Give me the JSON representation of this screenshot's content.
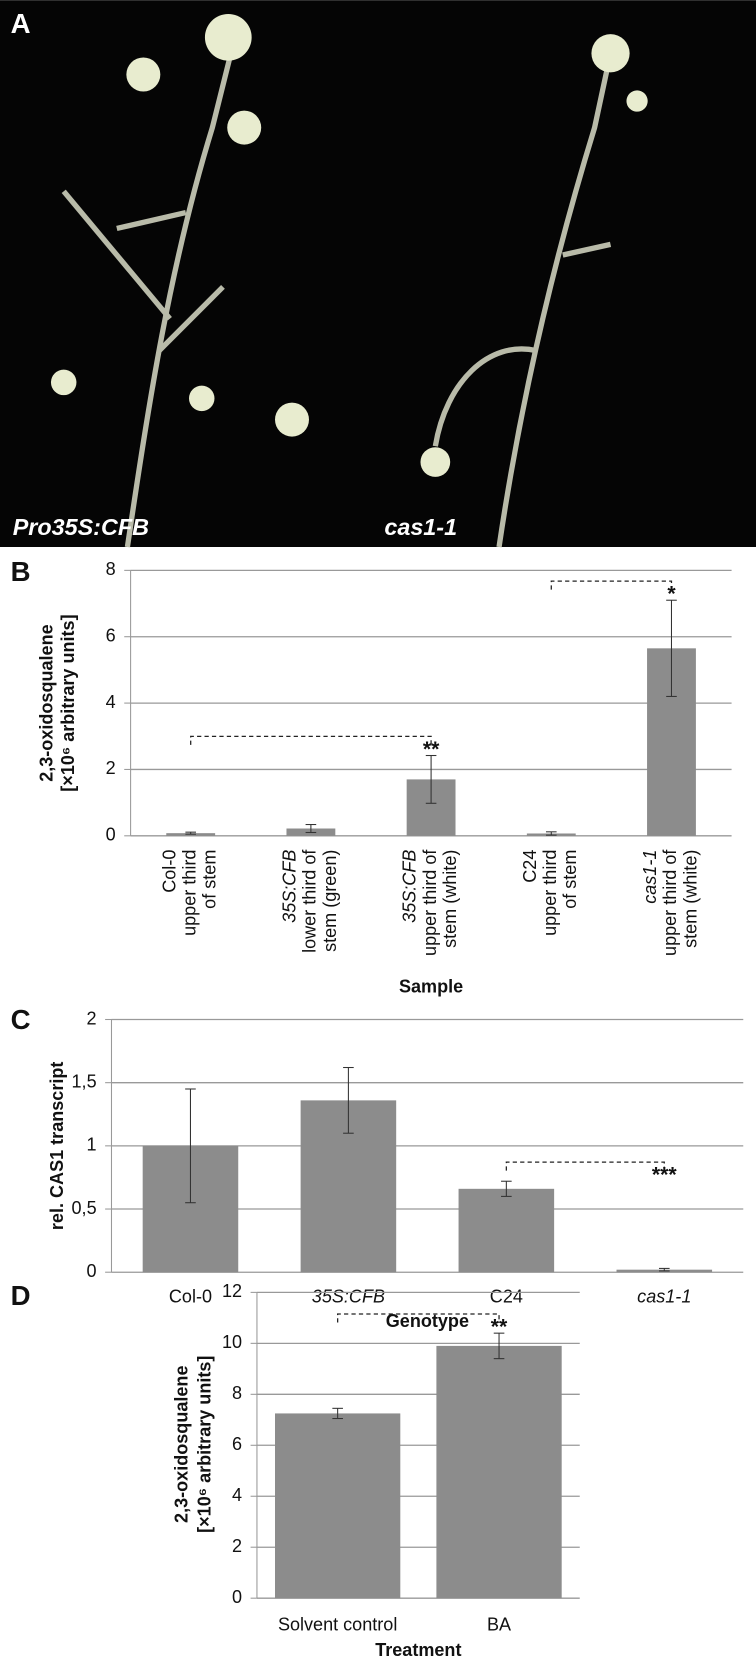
{
  "photo": {
    "panel_label": "A",
    "labels": [
      "Pro35S:CFB",
      "cas1-1"
    ]
  },
  "chart_data": [
    {
      "type": "bar",
      "panel_label": "B",
      "y_label": [
        "2,3-oxidosqualene",
        "[×10⁶ arbitrary units]"
      ],
      "x_label": "Sample",
      "categories": [
        [
          "Col-0",
          "upper third",
          "of stem"
        ],
        [
          "35S:CFB",
          "lower third of",
          "stem (green)"
        ],
        [
          "35S:CFB",
          "upper third of",
          "stem (white)"
        ],
        [
          "C24",
          "upper third",
          "of stem"
        ],
        [
          "cas1-1",
          "upper third of",
          "stem (white)"
        ]
      ],
      "italic_categories": [
        1,
        2,
        4
      ],
      "values": [
        0.08,
        0.22,
        1.7,
        0.07,
        5.65
      ],
      "errors": [
        0.03,
        0.12,
        0.72,
        0.05,
        1.45
      ],
      "color": "#8c8c8c",
      "ylim": [
        0,
        8
      ],
      "yticks": [
        0,
        2,
        4,
        6,
        8
      ],
      "grid": true,
      "significance": [
        {
          "from": 0,
          "to": 2,
          "label": "**"
        },
        {
          "from": 3,
          "to": 4,
          "label": "*"
        }
      ]
    },
    {
      "type": "bar",
      "panel_label": "C",
      "y_label": [
        "rel. CAS1 transcript"
      ],
      "x_label": "Genotype",
      "categories": [
        "Col-0",
        "35S:CFB",
        "C24",
        "cas1-1"
      ],
      "italic_categories": [
        1,
        3
      ],
      "values": [
        1.0,
        1.36,
        0.66,
        0.02
      ],
      "errors": [
        0.45,
        0.26,
        0.06,
        0.01
      ],
      "color": "#8c8c8c",
      "ylim": [
        0,
        2
      ],
      "yticks": [
        0,
        {
          "value": 0.5,
          "label": "0,5"
        },
        1,
        {
          "value": 1.5,
          "label": "1,5"
        },
        2
      ],
      "grid": true,
      "significance": [
        {
          "from": 2,
          "to": 3,
          "label": "***"
        }
      ]
    },
    {
      "type": "bar",
      "panel_label": "D",
      "y_label": [
        "2,3-oxidosqualene",
        "[×10⁶ arbitrary units]"
      ],
      "x_label": "Treatment",
      "categories": [
        "Solvent control",
        "BA"
      ],
      "italic_categories": [],
      "values": [
        7.25,
        9.9
      ],
      "errors": [
        0.2,
        0.5
      ],
      "color": "#8c8c8c",
      "ylim": [
        0,
        12
      ],
      "yticks": [
        0,
        2,
        4,
        6,
        8,
        10,
        12
      ],
      "grid": true,
      "significance": [
        {
          "from": 0,
          "to": 1,
          "label": "**"
        }
      ]
    }
  ]
}
